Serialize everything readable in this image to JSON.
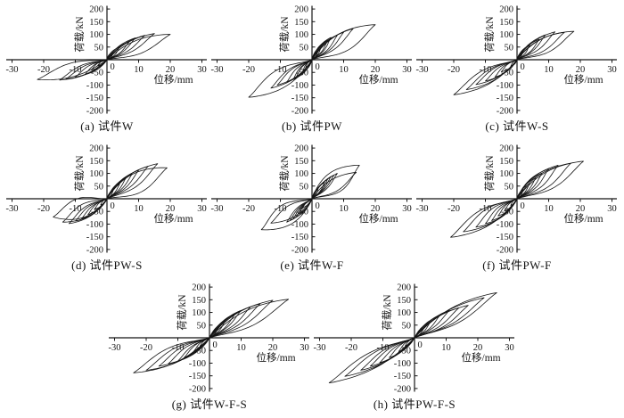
{
  "style": {
    "stroke_color": "#151515",
    "background": "#ffffff"
  },
  "axes_common": {
    "xlabel": "位移/mm",
    "ylabel": "荷载/kN",
    "xlim": [
      -30,
      30
    ],
    "ylim": [
      -200,
      200
    ],
    "xticks": [
      -30,
      -20,
      -10,
      10,
      20,
      30
    ],
    "yticks": [
      -200,
      -150,
      -100,
      -50,
      50,
      100,
      150,
      200
    ],
    "origin_label": "0",
    "grid": false,
    "axis_style": "cross-at-origin",
    "tick_direction": "x-down, y-right"
  },
  "chart_data": [
    {
      "type": "line",
      "subtype": "hysteresis-loops",
      "caption": "(a) 试件W",
      "specimen": "W",
      "row": 0,
      "loops_format": [
        "x_peak_mm",
        "load_peak_kN",
        "x_min_mm",
        "load_min_kN",
        "loop_half_width_mm"
      ],
      "loops": [
        [
          20,
          100,
          -22,
          -78,
          2.2
        ],
        [
          15,
          103,
          -15,
          -80,
          1.6
        ],
        [
          12,
          96,
          -13,
          -76,
          1.3
        ],
        [
          9,
          86,
          -10,
          -68,
          1.1
        ],
        [
          7,
          70,
          -7,
          -58,
          0.9
        ],
        [
          4,
          50,
          -5,
          -40,
          0.7
        ],
        [
          2,
          30,
          -3,
          -24,
          0.5
        ]
      ]
    },
    {
      "type": "line",
      "subtype": "hysteresis-loops",
      "caption": "(b) 试件PW",
      "specimen": "PW",
      "row": 0,
      "loops": [
        [
          20,
          138,
          -20,
          -148,
          3.0
        ],
        [
          13,
          122,
          -13,
          -112,
          1.7
        ],
        [
          10,
          108,
          -11,
          -100,
          1.4
        ],
        [
          8,
          96,
          -8,
          -88,
          1.2
        ],
        [
          6,
          88,
          -6,
          -78,
          1.0
        ],
        [
          5,
          78,
          -5,
          -68,
          0.8
        ],
        [
          3,
          55,
          -3,
          -48,
          0.6
        ],
        [
          2,
          38,
          -2,
          -30,
          0.4
        ]
      ]
    },
    {
      "type": "line",
      "subtype": "hysteresis-loops",
      "caption": "(c) 试件W-S",
      "specimen": "W-S",
      "row": 0,
      "loops": [
        [
          18,
          112,
          -20,
          -138,
          2.4
        ],
        [
          15,
          108,
          -16,
          -118,
          1.9
        ],
        [
          12,
          110,
          -13,
          -98,
          1.5
        ],
        [
          9,
          98,
          -10,
          -84,
          1.2
        ],
        [
          7,
          80,
          -7,
          -68,
          1.0
        ],
        [
          4,
          58,
          -5,
          -48,
          0.7
        ],
        [
          2,
          36,
          -2,
          -26,
          0.4
        ]
      ]
    },
    {
      "type": "line",
      "subtype": "hysteresis-loops",
      "caption": "(d) 试件PW-S",
      "specimen": "PW-S",
      "row": 1,
      "loops": [
        [
          19,
          122,
          -17,
          -72,
          3.2
        ],
        [
          16,
          138,
          -14,
          -92,
          2.2
        ],
        [
          13,
          128,
          -12,
          -98,
          1.7
        ],
        [
          10,
          112,
          -10,
          -88,
          1.4
        ],
        [
          8,
          98,
          -8,
          -78,
          1.1
        ],
        [
          6,
          82,
          -6,
          -62,
          0.9
        ],
        [
          4,
          58,
          -4,
          -42,
          0.6
        ],
        [
          2,
          34,
          -2,
          -24,
          0.4
        ]
      ]
    },
    {
      "type": "line",
      "subtype": "hysteresis-loops",
      "caption": "(e) 试件W-F",
      "specimen": "W-F",
      "row": 1,
      "loops": [
        [
          15,
          132,
          -16,
          -122,
          3.4
        ],
        [
          14,
          104,
          -13,
          -96,
          2.0
        ],
        [
          8,
          100,
          -8,
          -92,
          1.1
        ],
        [
          7,
          94,
          -7,
          -86,
          0.9
        ],
        [
          6,
          88,
          -6,
          -80,
          0.8
        ],
        [
          5,
          78,
          -5,
          -72,
          0.7
        ],
        [
          4,
          65,
          -4,
          -58,
          0.6
        ],
        [
          2,
          42,
          -3,
          -36,
          0.4
        ]
      ]
    },
    {
      "type": "line",
      "subtype": "hysteresis-loops",
      "caption": "(f) 试件PW-F",
      "specimen": "PW-F",
      "row": 1,
      "loops": [
        [
          21,
          148,
          -21,
          -152,
          2.8
        ],
        [
          17,
          140,
          -17,
          -130,
          2.4
        ],
        [
          13,
          132,
          -13,
          -112,
          2.0
        ],
        [
          10,
          118,
          -10,
          -98,
          1.6
        ],
        [
          8,
          102,
          -8,
          -86,
          1.2
        ],
        [
          6,
          84,
          -6,
          -68,
          0.9
        ],
        [
          4,
          60,
          -4,
          -48,
          0.6
        ],
        [
          2,
          36,
          -2,
          -26,
          0.4
        ]
      ]
    },
    {
      "type": "line",
      "subtype": "hysteresis-loops",
      "caption": "(g) 试件W-F-S",
      "specimen": "W-F-S",
      "row": 2,
      "loops": [
        [
          25,
          152,
          -24,
          -138,
          2.6
        ],
        [
          20,
          148,
          -20,
          -128,
          2.2
        ],
        [
          16,
          134,
          -16,
          -112,
          1.8
        ],
        [
          13,
          122,
          -13,
          -102,
          1.5
        ],
        [
          10,
          108,
          -10,
          -92,
          1.2
        ],
        [
          8,
          92,
          -8,
          -78,
          1.0
        ],
        [
          5,
          66,
          -5,
          -54,
          0.7
        ],
        [
          3,
          42,
          -3,
          -32,
          0.4
        ]
      ]
    },
    {
      "type": "line",
      "subtype": "hysteresis-loops",
      "caption": "(h) 试件PW-F-S",
      "specimen": "PW-F-S",
      "row": 2,
      "loops": [
        [
          26,
          178,
          -27,
          -178,
          2.6
        ],
        [
          22,
          158,
          -22,
          -152,
          2.2
        ],
        [
          17,
          128,
          -17,
          -128,
          1.8
        ],
        [
          14,
          118,
          -14,
          -112,
          1.5
        ],
        [
          11,
          108,
          -11,
          -98,
          1.2
        ],
        [
          8,
          88,
          -8,
          -78,
          1.0
        ],
        [
          5,
          62,
          -5,
          -54,
          0.7
        ],
        [
          3,
          38,
          -3,
          -32,
          0.4
        ]
      ]
    }
  ]
}
